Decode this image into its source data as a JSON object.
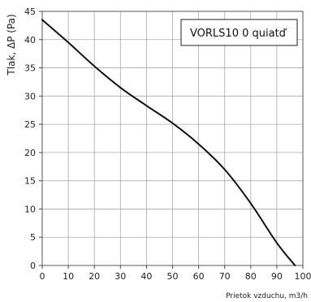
{
  "chart_data": {
    "type": "line",
    "title": "",
    "xlabel": "Prietok vzduchu, m3/h",
    "ylabel": "Tlak, ΔP (Pa)",
    "xlim": [
      0,
      100
    ],
    "ylim": [
      0,
      45
    ],
    "x_ticks": [
      0,
      10,
      20,
      30,
      40,
      50,
      60,
      70,
      80,
      90,
      100
    ],
    "y_ticks": [
      0,
      5,
      10,
      15,
      20,
      25,
      30,
      35,
      40,
      45
    ],
    "grid": true,
    "legend_position": "top-right",
    "series": [
      {
        "name": "VORLS10 0 quiatď",
        "color": "#111111",
        "x": [
          0,
          10,
          20,
          30,
          40,
          50,
          60,
          70,
          80,
          90,
          97
        ],
        "y": [
          43.5,
          39.5,
          35.3,
          31.5,
          28.3,
          25.2,
          21.5,
          17,
          11,
          4,
          0
        ]
      }
    ]
  }
}
